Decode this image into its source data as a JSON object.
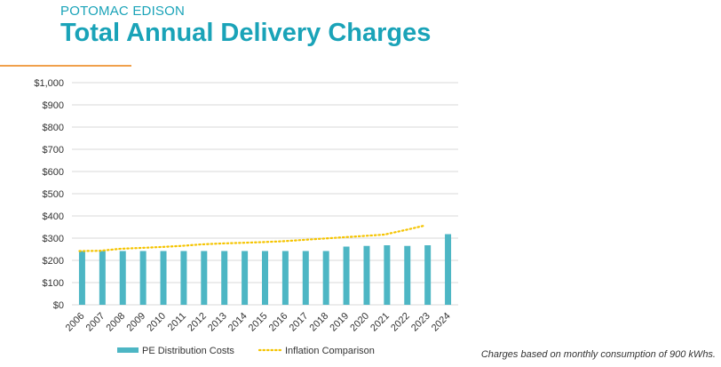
{
  "header": {
    "company": "POTOMAC EDISON",
    "title": "Total Annual Delivery Charges"
  },
  "footnote": "Charges based on monthly consumption of 900 kWhs.",
  "colors": {
    "bar": "#4db6c4",
    "inflation": "#f5c400",
    "title": "#1aa3b8",
    "accent": "#f0a04b",
    "grid": "#d9d9d9"
  },
  "chart_data": {
    "type": "bar",
    "categories": [
      "2006",
      "2007",
      "2008",
      "2009",
      "2010",
      "2011",
      "2012",
      "2013",
      "2014",
      "2015",
      "2016",
      "2017",
      "2018",
      "2019",
      "2020",
      "2021",
      "2022",
      "2023",
      "2024"
    ],
    "series": [
      {
        "name": "PE Distribution Costs",
        "type": "bar",
        "values": [
          242,
          242,
          242,
          242,
          242,
          242,
          242,
          242,
          242,
          242,
          242,
          242,
          242,
          262,
          265,
          268,
          265,
          268,
          318
        ]
      },
      {
        "name": "Inflation Comparison",
        "type": "line",
        "style": "dotted",
        "values": [
          242,
          243,
          252,
          256,
          260,
          265,
          272,
          276,
          279,
          282,
          286,
          292,
          298,
          304,
          310,
          316,
          336,
          357,
          null
        ]
      }
    ],
    "yticks": [
      "$0",
      "$100",
      "$200",
      "$300",
      "$400",
      "$500",
      "$600",
      "$700",
      "$800",
      "$900",
      "$1,000"
    ],
    "ylim": [
      0,
      1000
    ],
    "grid": true,
    "legend": "bottom"
  }
}
